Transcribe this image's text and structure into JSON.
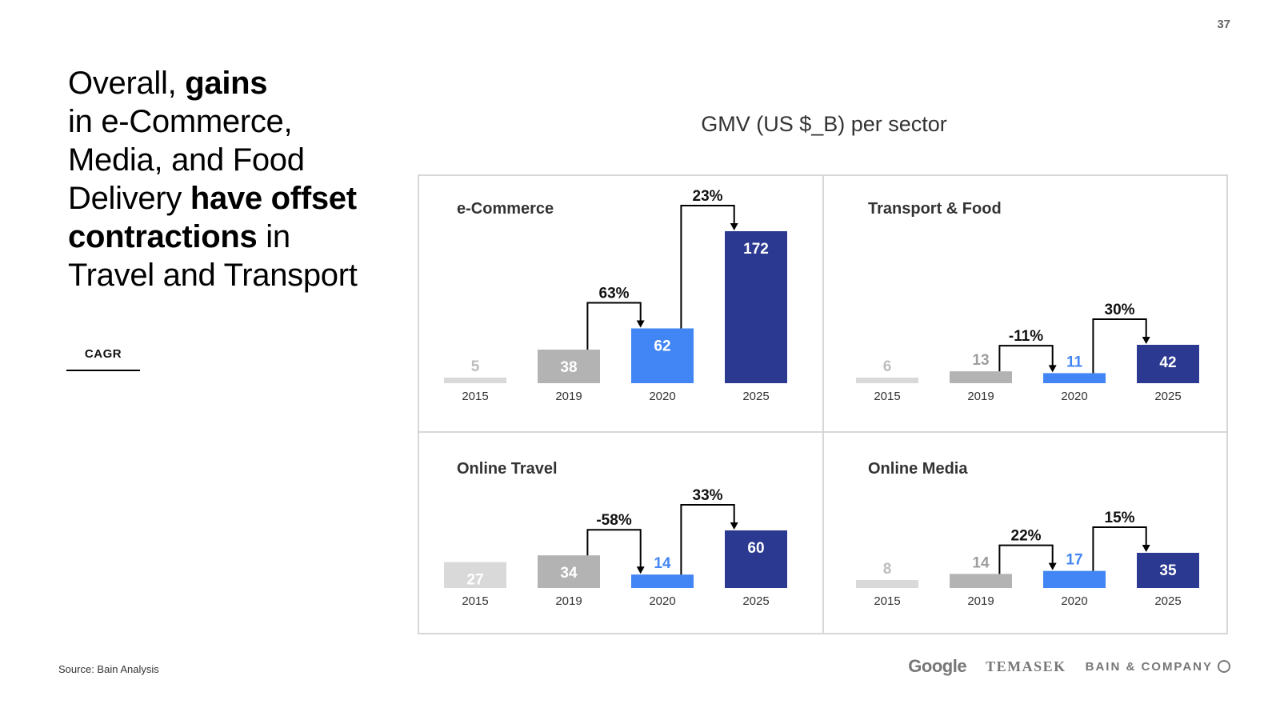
{
  "page_number": "37",
  "headline": {
    "l1a": "Overall, ",
    "l1b": "gains",
    "l2": "in e-Commerce,",
    "l3": "Media, and Food",
    "l4a": "Delivery ",
    "l4b": "have offset",
    "l5a": "contractions",
    "l5b": " in",
    "l6": "Travel and Transport"
  },
  "cagr_label": "CAGR",
  "source": "Source: Bain Analysis",
  "logos": {
    "google": "Google",
    "temasek": "TEMASEK",
    "bain": "BAIN & COMPANY"
  },
  "colors": {
    "y2015": "#d9d9d9",
    "y2015_text": "#bdbdbd",
    "y2019": "#b3b3b3",
    "y2019_text": "#9e9e9e",
    "y2020": "#4285f4",
    "y2025": "#2b3990",
    "inside_label": "#ffffff",
    "grid": "#d7d7d7"
  },
  "chart_data": {
    "type": "bar",
    "title": "GMV (US $_B) per sector",
    "categories": [
      "2015",
      "2019",
      "2020",
      "2025"
    ],
    "panels": [
      {
        "name": "e-Commerce",
        "values": [
          5,
          38,
          62,
          172
        ],
        "cagr": [
          {
            "from": "2019",
            "to": "2020",
            "label": "63%"
          },
          {
            "from": "2020",
            "to": "2025",
            "label": "23%"
          }
        ]
      },
      {
        "name": "Transport & Food",
        "values": [
          6,
          13,
          11,
          42
        ],
        "cagr": [
          {
            "from": "2019",
            "to": "2020",
            "label": "-11%"
          },
          {
            "from": "2020",
            "to": "2025",
            "label": "30%"
          }
        ]
      },
      {
        "name": "Online Travel",
        "values": [
          27,
          34,
          14,
          60
        ],
        "cagr": [
          {
            "from": "2019",
            "to": "2020",
            "label": "-58%"
          },
          {
            "from": "2020",
            "to": "2025",
            "label": "33%"
          }
        ]
      },
      {
        "name": "Online Media",
        "values": [
          8,
          14,
          17,
          35
        ],
        "cagr": [
          {
            "from": "2019",
            "to": "2020",
            "label": "22%"
          },
          {
            "from": "2020",
            "to": "2025",
            "label": "15%"
          }
        ]
      }
    ]
  }
}
